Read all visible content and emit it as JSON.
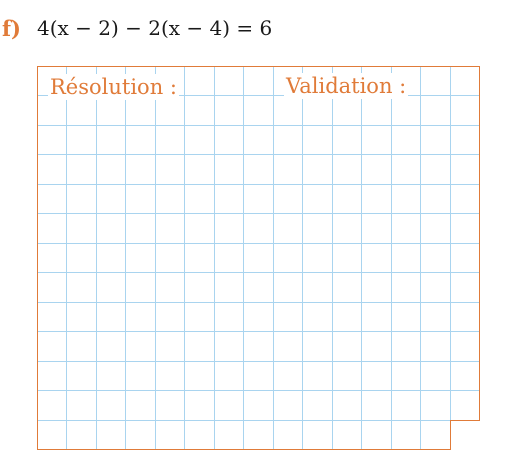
{
  "exercise": {
    "letter": "f)",
    "equation": "4(x − 2) − 2(x − 4) = 6"
  },
  "labels": {
    "resolution": "Résolution :",
    "validation": "Validation :"
  },
  "colors": {
    "accent": "#e07b39",
    "grid_line": "#a9d4ef",
    "text": "#1a1a1a"
  }
}
